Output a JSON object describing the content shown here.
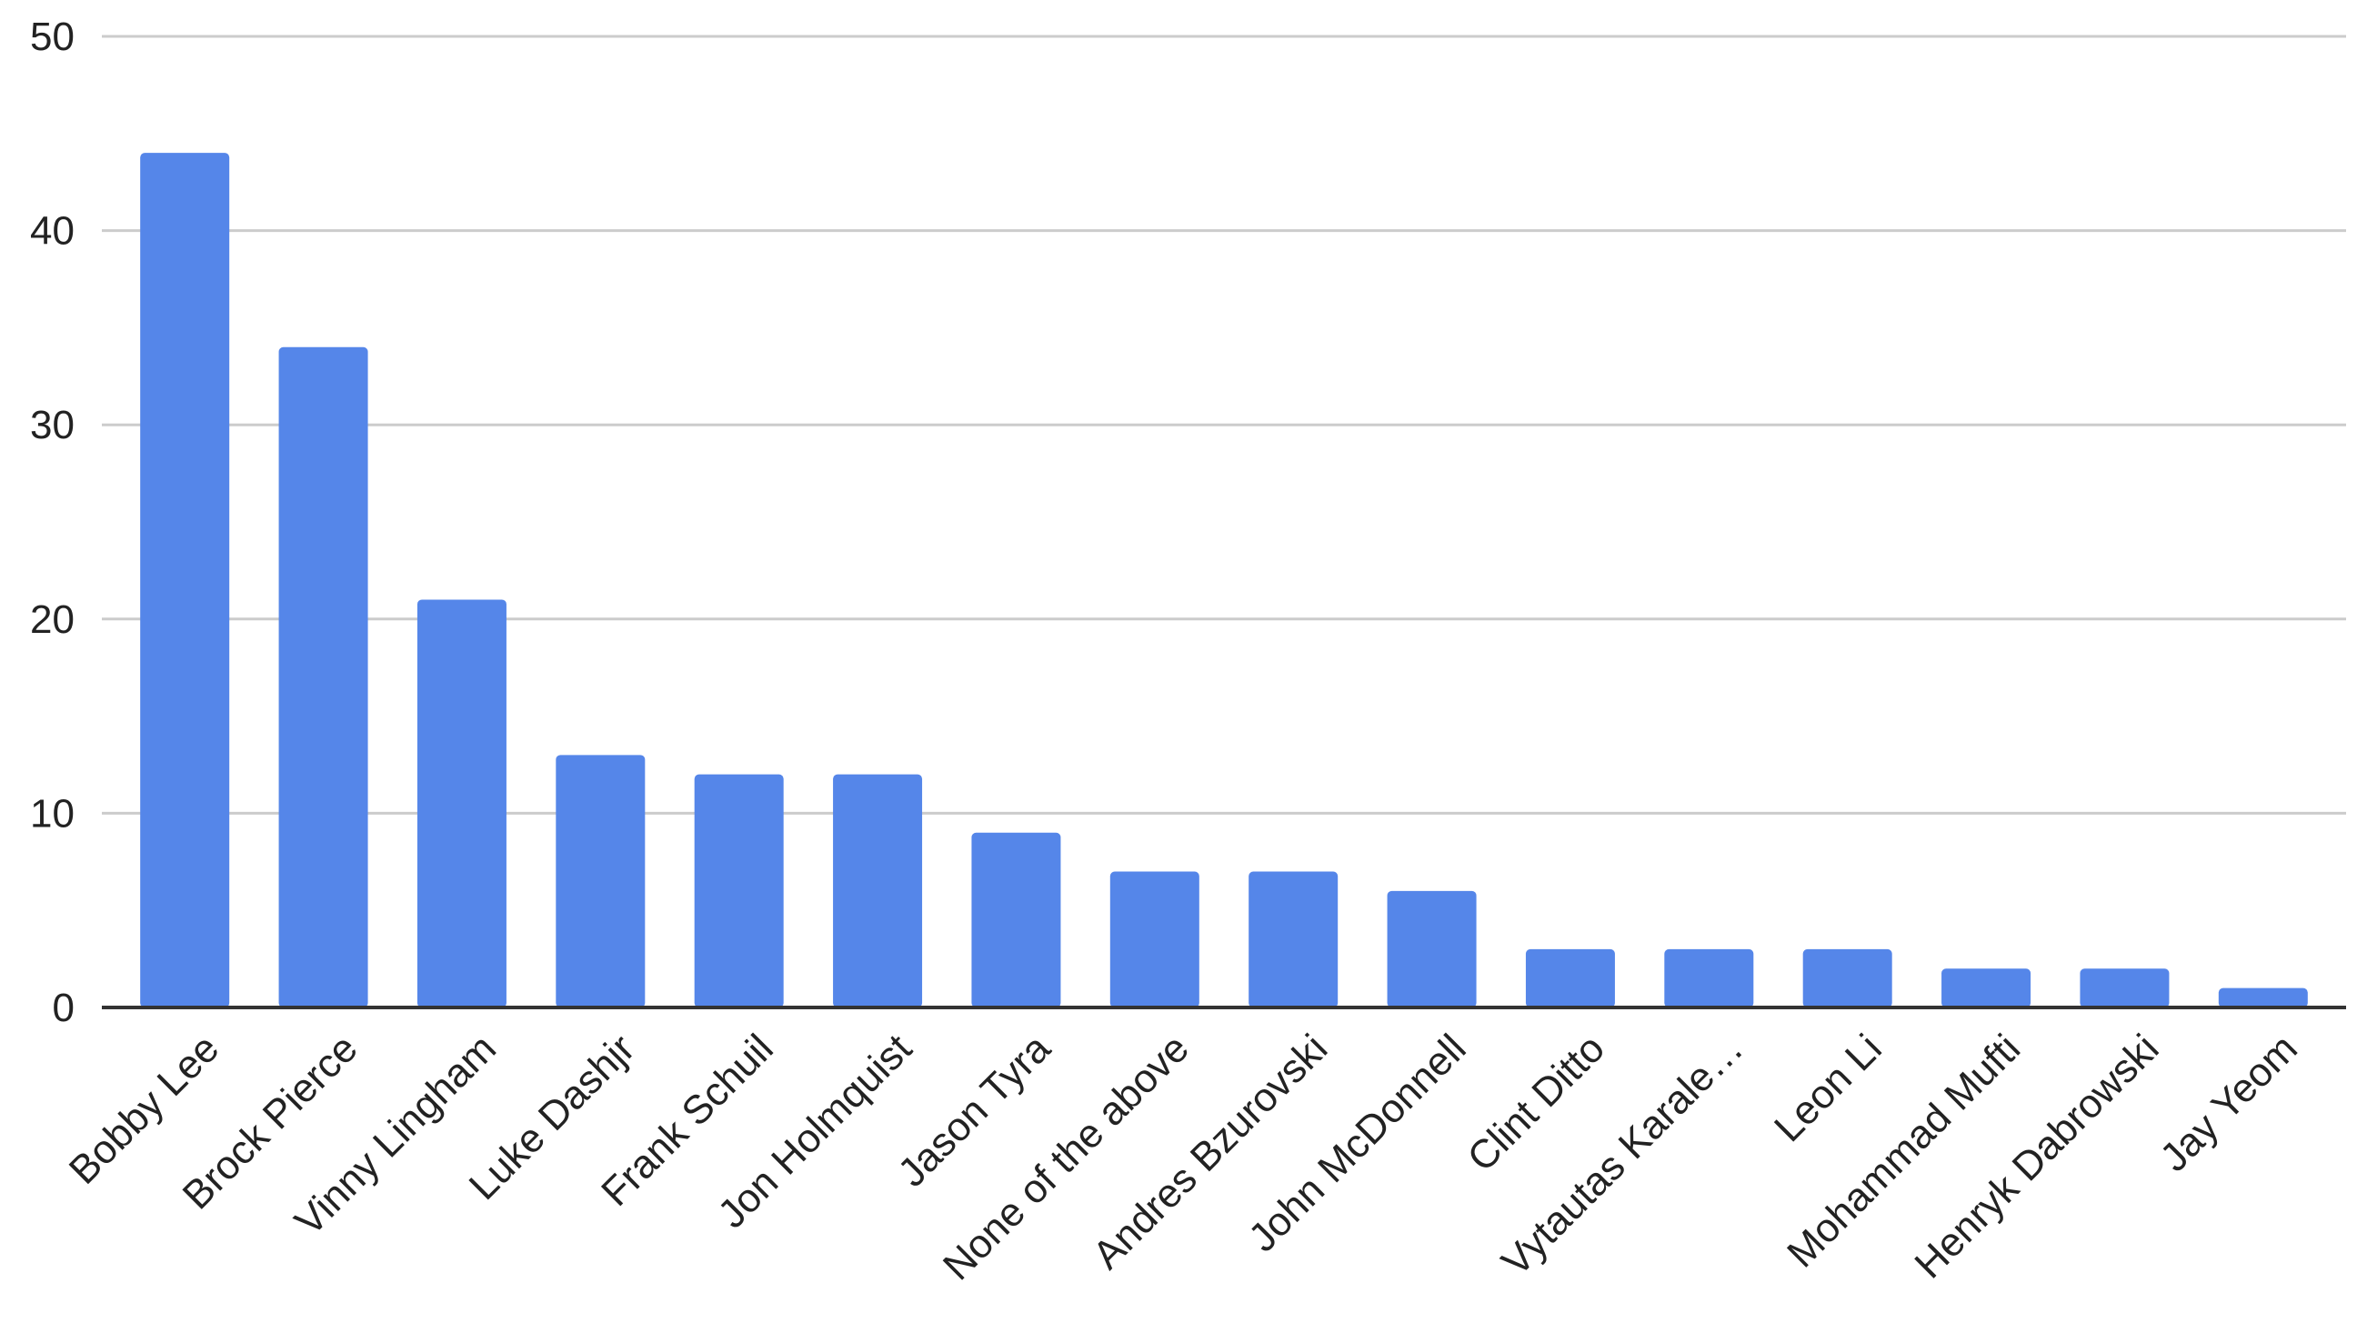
{
  "chart_data": {
    "type": "bar",
    "title": "",
    "xlabel": "",
    "ylabel": "",
    "ylim": [
      0,
      50
    ],
    "yticks": [
      0,
      10,
      20,
      30,
      40,
      50
    ],
    "grid": true,
    "legend": null,
    "bar_color": "#5586e9",
    "categories": [
      "Bobby Lee",
      "Brock Pierce",
      "Vinny Lingham",
      "Luke Dashjr",
      "Frank Schuil",
      "Jon Holmquist",
      "Jason Tyra",
      "None of the above",
      "Andres Bzurovski",
      "John McDonnell",
      "Clint Ditto",
      "Vytautas Karale…",
      "Leon Li",
      "Mohammad Mufti",
      "Henryk Dabrowski",
      "Jay Yeom"
    ],
    "values": [
      44,
      34,
      21,
      13,
      12,
      12,
      9,
      7,
      7,
      6,
      3,
      3,
      3,
      2,
      2,
      1
    ]
  },
  "colors": {
    "bar": "#5586e9",
    "gridline": "#cccccc",
    "axis": "#333333",
    "text": "#222222"
  }
}
